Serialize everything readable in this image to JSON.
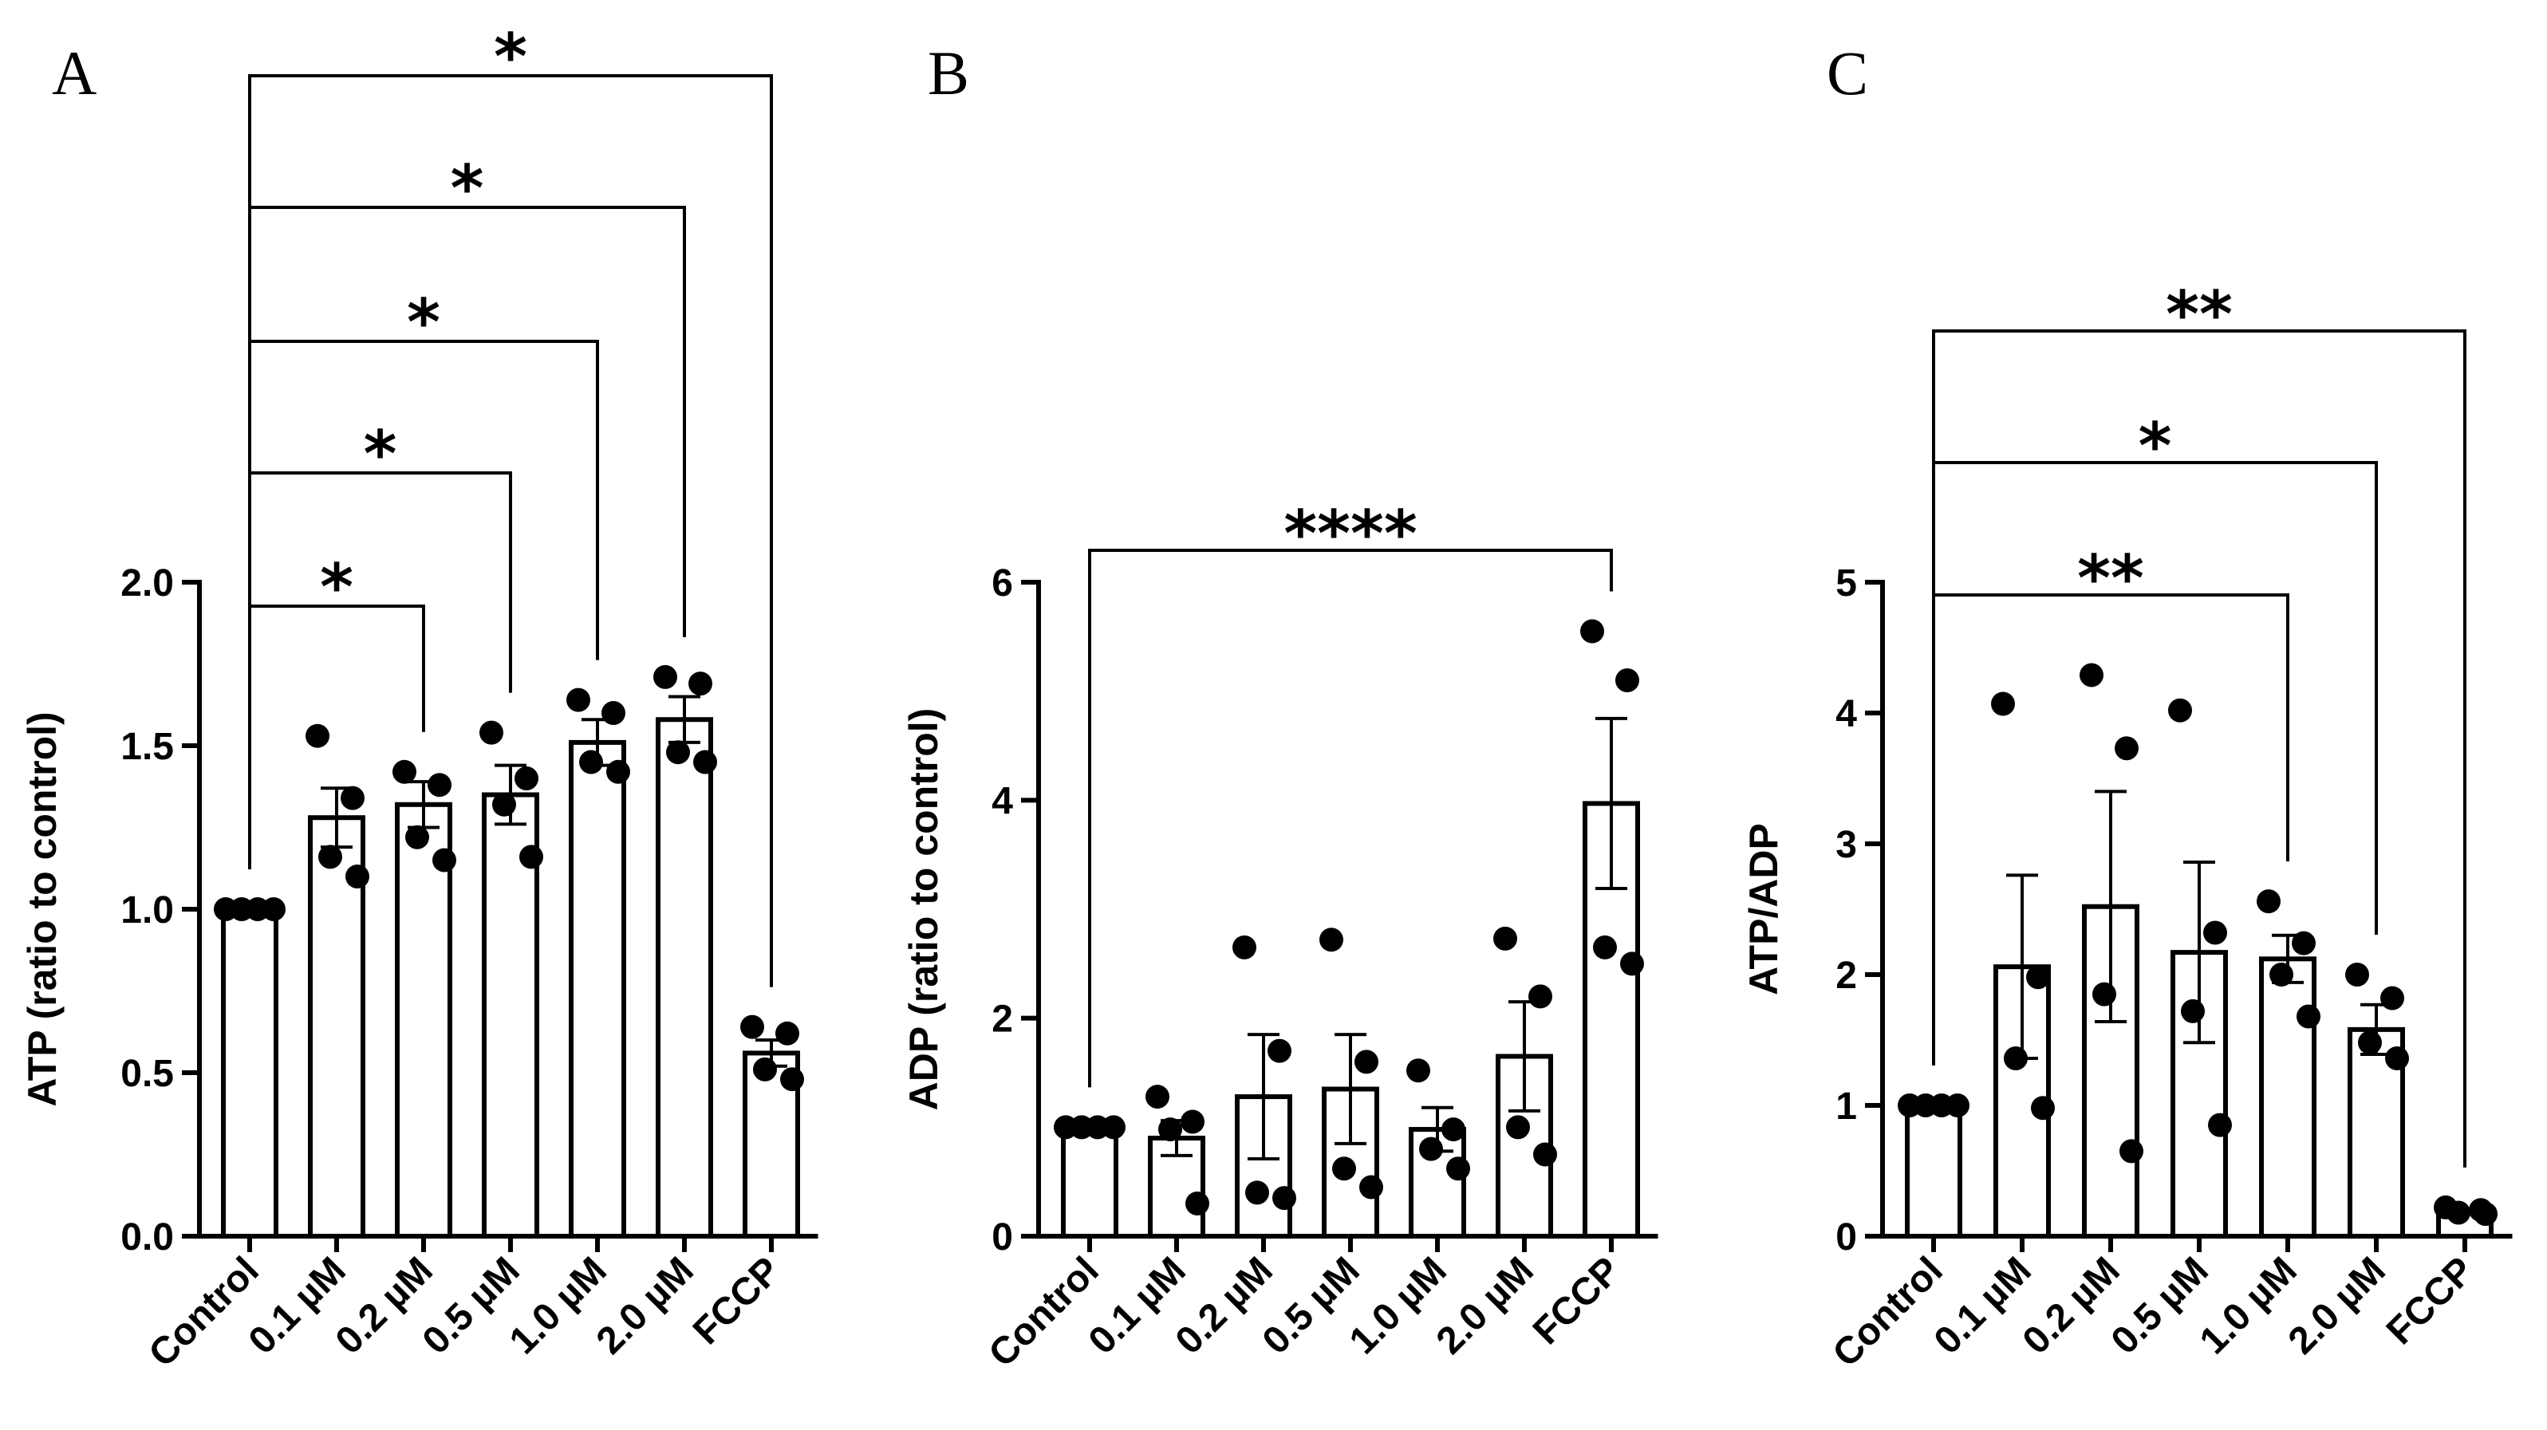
{
  "chart_data": [
    {
      "type": "bar",
      "panel_label": "A",
      "ylabel": "ATP (ratio to control)",
      "ylim": [
        0,
        2.0
      ],
      "yticks": [
        0.0,
        0.5,
        1.0,
        1.5,
        2.0
      ],
      "ytick_labels": [
        "0.0",
        "0.5",
        "1.0",
        "1.5",
        "2.0"
      ],
      "categories": [
        "Control",
        "0.1 µM",
        "0.2 µM",
        "0.5 µM",
        "1.0 µM",
        "2.0 µM",
        "FCCP"
      ],
      "values": [
        1.0,
        1.28,
        1.32,
        1.35,
        1.51,
        1.58,
        0.56
      ],
      "errors": [
        0.0,
        0.09,
        0.07,
        0.09,
        0.07,
        0.07,
        0.04
      ],
      "points": [
        [
          1.0,
          1.0,
          1.0,
          1.0
        ],
        [
          1.53,
          1.34,
          1.16,
          1.1
        ],
        [
          1.42,
          1.38,
          1.22,
          1.15
        ],
        [
          1.54,
          1.4,
          1.32,
          1.16
        ],
        [
          1.64,
          1.6,
          1.45,
          1.42
        ],
        [
          1.71,
          1.69,
          1.48,
          1.45
        ],
        [
          0.64,
          0.62,
          0.51,
          0.48
        ]
      ],
      "significance": [
        {
          "from": "Control",
          "to": "0.2 µM",
          "label": "*"
        },
        {
          "from": "Control",
          "to": "0.5 µM",
          "label": "*"
        },
        {
          "from": "Control",
          "to": "1.0 µM",
          "label": "*"
        },
        {
          "from": "Control",
          "to": "2.0 µM",
          "label": "*"
        },
        {
          "from": "Control",
          "to": "FCCP",
          "label": "*"
        }
      ]
    },
    {
      "type": "bar",
      "panel_label": "B",
      "ylabel": "ADP (ratio to control)",
      "ylim": [
        0,
        6
      ],
      "yticks": [
        0,
        2,
        4,
        6
      ],
      "ytick_labels": [
        "0",
        "2",
        "4",
        "6"
      ],
      "categories": [
        "Control",
        "0.1 µM",
        "0.2 µM",
        "0.5 µM",
        "1.0 µM",
        "2.0 µM",
        "FCCP"
      ],
      "values": [
        1.0,
        0.9,
        1.28,
        1.35,
        0.98,
        1.65,
        3.97
      ],
      "errors": [
        0.0,
        0.16,
        0.57,
        0.5,
        0.2,
        0.5,
        0.78
      ],
      "points": [
        [
          1.0,
          1.0,
          1.0,
          1.0
        ],
        [
          1.28,
          1.05,
          0.98,
          0.3
        ],
        [
          2.65,
          1.7,
          0.4,
          0.35
        ],
        [
          2.72,
          1.6,
          0.62,
          0.45
        ],
        [
          1.52,
          0.98,
          0.8,
          0.62
        ],
        [
          2.73,
          2.2,
          1.0,
          0.75
        ],
        [
          5.55,
          5.1,
          2.65,
          2.5
        ]
      ],
      "significance": [
        {
          "from": "Control",
          "to": "FCCP",
          "label": "****"
        }
      ]
    },
    {
      "type": "bar",
      "panel_label": "C",
      "ylabel": "ATP/ADP",
      "ylim": [
        0,
        5
      ],
      "yticks": [
        0,
        1,
        2,
        3,
        4,
        5
      ],
      "ytick_labels": [
        "0",
        "1",
        "2",
        "3",
        "4",
        "5"
      ],
      "categories": [
        "Control",
        "0.1 µM",
        "0.2 µM",
        "0.5 µM",
        "1.0 µM",
        "2.0 µM",
        "FCCP"
      ],
      "values": [
        1.0,
        2.06,
        2.52,
        2.17,
        2.12,
        1.58,
        0.19
      ],
      "errors": [
        0.0,
        0.7,
        0.88,
        0.69,
        0.18,
        0.19,
        0.02
      ],
      "points": [
        [
          1.0,
          1.0,
          1.0,
          1.0
        ],
        [
          4.07,
          1.98,
          1.36,
          0.98
        ],
        [
          4.29,
          3.73,
          1.85,
          0.65
        ],
        [
          4.02,
          2.32,
          1.72,
          0.85
        ],
        [
          2.56,
          2.24,
          2.0,
          1.68
        ],
        [
          2.0,
          1.82,
          1.48,
          1.36
        ],
        [
          0.22,
          0.2,
          0.18,
          0.17
        ]
      ],
      "significance": [
        {
          "from": "Control",
          "to": "1.0 µM",
          "label": "**"
        },
        {
          "from": "Control",
          "to": "2.0 µM",
          "label": "*"
        },
        {
          "from": "Control",
          "to": "FCCP",
          "label": "**"
        }
      ]
    }
  ]
}
